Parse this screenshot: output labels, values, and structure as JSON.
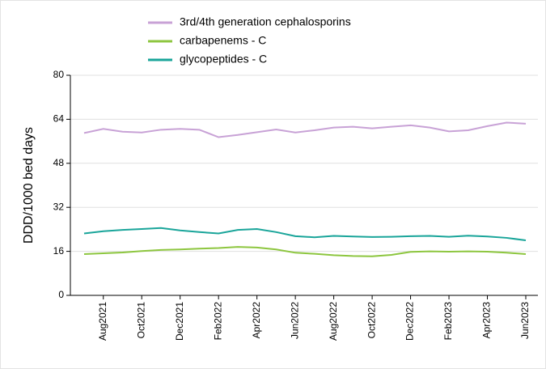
{
  "chart_data": {
    "type": "line",
    "ylabel": "DDD/1000 bed days",
    "categories": [
      null,
      "Aug2021",
      null,
      "Oct2021",
      null,
      "Dec2021",
      null,
      "Feb2022",
      null,
      "Apr2022",
      null,
      "Jun2022",
      null,
      "Aug2022",
      null,
      "Oct2022",
      null,
      "Dec2022",
      null,
      "Feb2023",
      null,
      "Apr2023",
      null,
      "Jun2023"
    ],
    "series": [
      {
        "name": "3rd/4th generation cephalosporins",
        "color": "#c8a2d6",
        "values": [
          59,
          60.5,
          59.5,
          59.2,
          60.2,
          60.5,
          60.2,
          57.5,
          58.3,
          59.3,
          60.3,
          59.2,
          60,
          61,
          61.3,
          60.7,
          61.3,
          61.8,
          61,
          59.6,
          60,
          61.5,
          62.8,
          62.4
        ]
      },
      {
        "name": "carbapenems - C",
        "color": "#8dc63f",
        "values": [
          15.0,
          15.3,
          15.6,
          16.1,
          16.5,
          16.7,
          17.0,
          17.2,
          17.6,
          17.4,
          16.7,
          15.5,
          15.1,
          14.6,
          14.3,
          14.2,
          14.7,
          15.8,
          16.0,
          15.9,
          16.0,
          15.9,
          15.5,
          15.0
        ]
      },
      {
        "name": "glycopeptides - C",
        "color": "#1aa59a",
        "values": [
          22.5,
          23.3,
          23.8,
          24.1,
          24.5,
          23.6,
          23.0,
          22.5,
          23.8,
          24.1,
          23,
          21.5,
          21.1,
          21.6,
          21.4,
          21.2,
          21.3,
          21.5,
          21.6,
          21.3,
          21.7,
          21.4,
          20.9,
          20.0
        ]
      }
    ],
    "ylim": [
      0,
      80
    ],
    "yticks": [
      0,
      16,
      32,
      48,
      64,
      80
    ],
    "grid": true,
    "legend": "top"
  }
}
